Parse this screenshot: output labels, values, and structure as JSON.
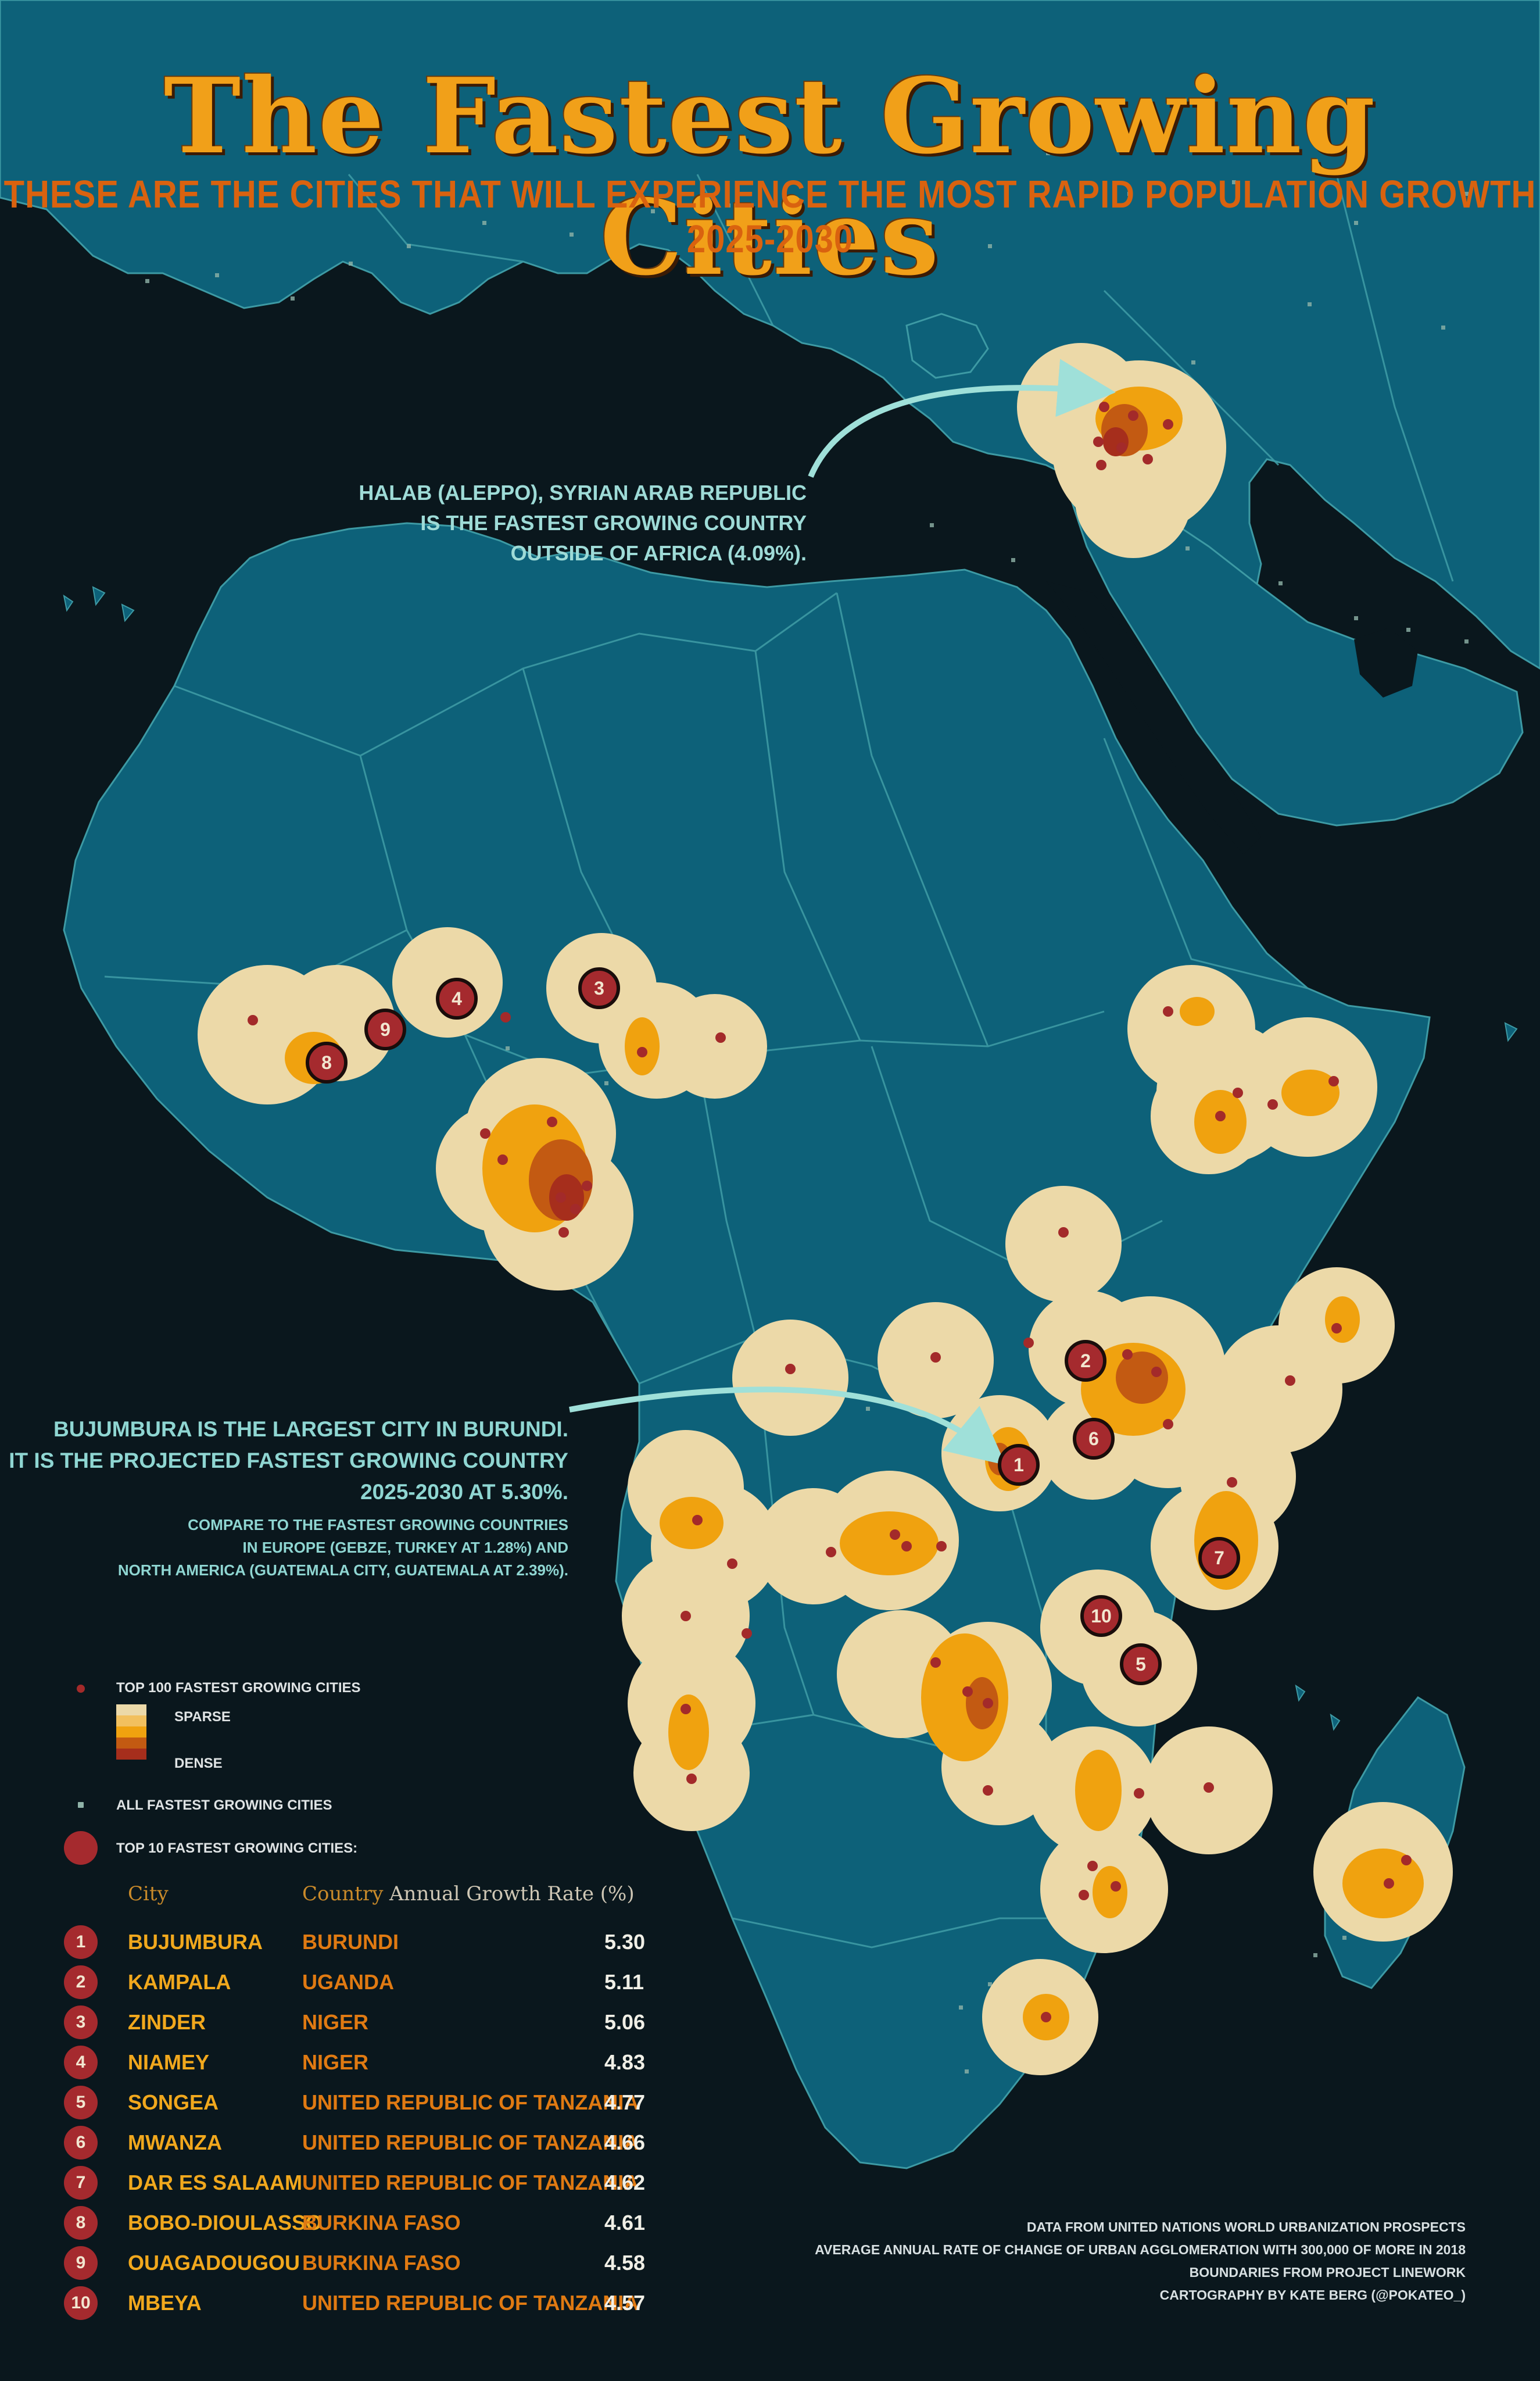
{
  "title": "The Fastest Growing Cities",
  "subtitle": "THESE ARE THE CITIES THAT WILL EXPERIENCE THE MOST RAPID POPULATION GROWTH 2025-2030",
  "annotations": {
    "syria": [
      "HALAB (ALEPPO), SYRIAN ARAB REPUBLIC",
      "IS THE FASTEST GROWING COUNTRY",
      "OUTSIDE OF AFRICA (4.09%)."
    ],
    "burundi_main": [
      "BUJUMBURA IS THE LARGEST CITY IN BURUNDI.",
      "IT IS THE PROJECTED FASTEST GROWING COUNTRY",
      "2025-2030 AT 5.30%."
    ],
    "burundi_compare": [
      "COMPARE TO THE FASTEST GROWING COUNTRIES",
      "IN EUROPE (GEBZE, TURKEY AT 1.28%) AND",
      "NORTH AMERICA (GUATEMALA CITY, GUATEMALA AT 2.39%)."
    ]
  },
  "legend": {
    "top100": "TOP 100 FASTEST GROWING CITIES",
    "sparse": "SPARSE",
    "dense": "DENSE",
    "all": "ALL FASTEST GROWING CITIES",
    "top10": "TOP 10 FASTEST GROWING CITIES:"
  },
  "table": {
    "headers": {
      "city": "City",
      "country": "Country",
      "rate": "Annual Growth Rate (%)"
    },
    "rows": [
      {
        "rank": "1",
        "city": "BUJUMBURA",
        "country": "BURUNDI",
        "rate": "5.30"
      },
      {
        "rank": "2",
        "city": "KAMPALA",
        "country": "UGANDA",
        "rate": "5.11"
      },
      {
        "rank": "3",
        "city": "ZINDER",
        "country": "NIGER",
        "rate": "5.06"
      },
      {
        "rank": "4",
        "city": "NIAMEY",
        "country": "NIGER",
        "rate": "4.83"
      },
      {
        "rank": "5",
        "city": "SONGEA",
        "country": "UNITED REPUBLIC OF TANZANIA",
        "rate": "4.77"
      },
      {
        "rank": "6",
        "city": "MWANZA",
        "country": "UNITED REPUBLIC OF TANZANIA",
        "rate": "4.66"
      },
      {
        "rank": "7",
        "city": "DAR ES SALAAM",
        "country": "UNITED REPUBLIC OF TANZANIA",
        "rate": "4.62"
      },
      {
        "rank": "8",
        "city": "BOBO-DIOULASSO",
        "country": "BURKINA FASO",
        "rate": "4.61"
      },
      {
        "rank": "9",
        "city": "OUAGADOUGOU",
        "country": "BURKINA FASO",
        "rate": "4.58"
      },
      {
        "rank": "10",
        "city": "MBEYA",
        "country": "UNITED REPUBLIC OF TANZANIA",
        "rate": "4.57"
      }
    ]
  },
  "credits": [
    "DATA FROM UNITED NATIONS WORLD URBANIZATION PROSPECTS",
    "AVERAGE ANNUAL RATE OF CHANGE OF URBAN AGGLOMERATION WITH 300,000 OF MORE IN 2018",
    "BOUNDARIES FROM PROJECT LINEWORK",
    "CARTOGRAPHY BY KATE BERG (@POKATEO_)"
  ],
  "colors": {
    "ocean": "#0a171d",
    "land": "#0d6179",
    "border": "#3d9aa4",
    "sparse": "#ecd9a8",
    "mid": "#f0a20f",
    "dense": "#c35a12",
    "densest": "#a62e1c",
    "city_dot": "#a32a2a",
    "accent_arrow": "#9fe0d9"
  },
  "map_labels": [
    {
      "id": "m1",
      "rank": "1"
    },
    {
      "id": "m2",
      "rank": "2"
    },
    {
      "id": "m3",
      "rank": "3"
    },
    {
      "id": "m4",
      "rank": "4"
    },
    {
      "id": "m5",
      "rank": "5"
    },
    {
      "id": "m6",
      "rank": "6"
    },
    {
      "id": "m7",
      "rank": "7"
    },
    {
      "id": "m8",
      "rank": "8"
    },
    {
      "id": "m9",
      "rank": "9"
    },
    {
      "id": "m10",
      "rank": "10"
    }
  ]
}
